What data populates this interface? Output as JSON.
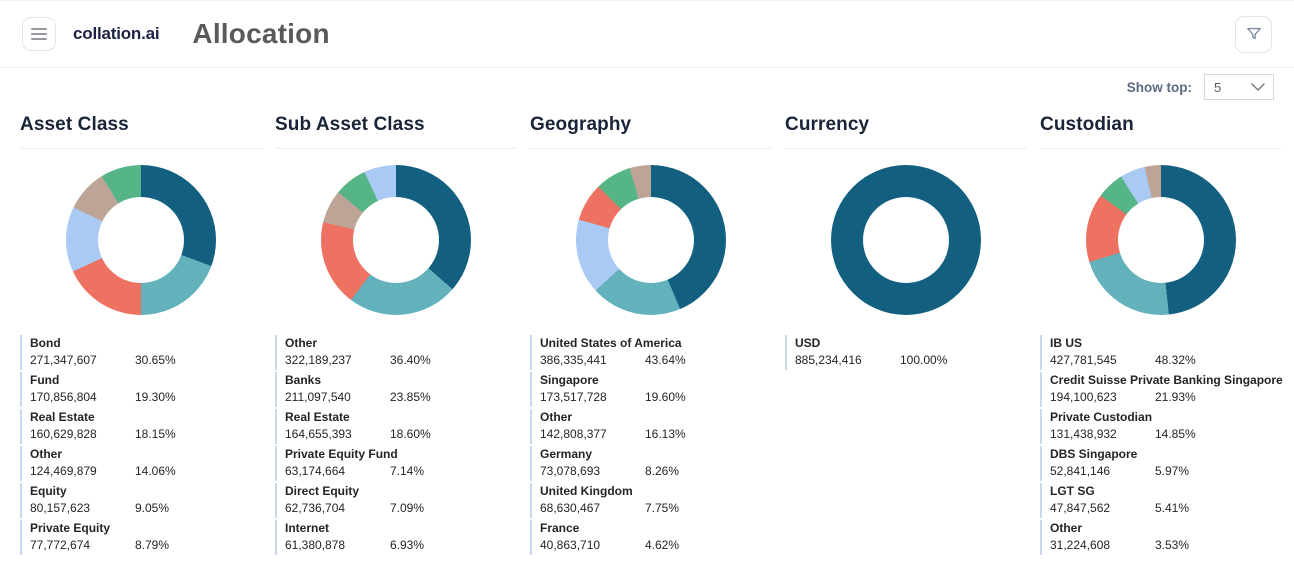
{
  "header": {
    "brand": "collation.ai",
    "title": "Allocation"
  },
  "toolbar": {
    "show_top_label": "Show top:",
    "show_top_value": "5"
  },
  "colors": {
    "dark_teal": "#135f80",
    "teal": "#62b1bb",
    "salmon": "#ed7261",
    "light_blue": "#a9caf5",
    "tan": "#bda496",
    "green": "#55b586",
    "brand_navy": "#1b2342",
    "page_title_gray": "#5a5a5a",
    "show_top_label_slate": "#5b6b84",
    "legend_bar_blue": "#c9d9ef"
  },
  "chart_data": [
    {
      "type": "pie",
      "variant": "donut",
      "title": "Asset Class",
      "legend_position": "bottom",
      "slices": [
        {
          "label": "Bond",
          "value": "271,347,607",
          "pct": "30.65%",
          "color": "#135f80"
        },
        {
          "label": "Fund",
          "value": "170,856,804",
          "pct": "19.30%",
          "color": "#62b1bb"
        },
        {
          "label": "Real Estate",
          "value": "160,629,828",
          "pct": "18.15%",
          "color": "#ed7261"
        },
        {
          "label": "Other",
          "value": "124,469,879",
          "pct": "14.06%",
          "color": "#a9caf5"
        },
        {
          "label": "Equity",
          "value": "80,157,623",
          "pct": "9.05%",
          "color": "#bda496"
        },
        {
          "label": "Private Equity",
          "value": "77,772,674",
          "pct": "8.79%",
          "color": "#55b586"
        }
      ]
    },
    {
      "type": "pie",
      "variant": "donut",
      "title": "Sub Asset Class",
      "legend_position": "bottom",
      "slices": [
        {
          "label": "Other",
          "value": "322,189,237",
          "pct": "36.40%",
          "color": "#135f80"
        },
        {
          "label": "Banks",
          "value": "211,097,540",
          "pct": "23.85%",
          "color": "#62b1bb"
        },
        {
          "label": "Real Estate",
          "value": "164,655,393",
          "pct": "18.60%",
          "color": "#ed7261"
        },
        {
          "label": "Private Equity Fund",
          "value": "63,174,664",
          "pct": "7.14%",
          "color": "#bda496"
        },
        {
          "label": "Direct Equity",
          "value": "62,736,704",
          "pct": "7.09%",
          "color": "#55b586"
        },
        {
          "label": "Internet",
          "value": "61,380,878",
          "pct": "6.93%",
          "color": "#a9caf5"
        }
      ]
    },
    {
      "type": "pie",
      "variant": "donut",
      "title": "Geography",
      "legend_position": "bottom",
      "slices": [
        {
          "label": "United States of America",
          "value": "386,335,441",
          "pct": "43.64%",
          "color": "#135f80"
        },
        {
          "label": "Singapore",
          "value": "173,517,728",
          "pct": "19.60%",
          "color": "#62b1bb"
        },
        {
          "label": "Other",
          "value": "142,808,377",
          "pct": "16.13%",
          "color": "#a9caf5"
        },
        {
          "label": "Germany",
          "value": "73,078,693",
          "pct": "8.26%",
          "color": "#ed7261"
        },
        {
          "label": "United Kingdom",
          "value": "68,630,467",
          "pct": "7.75%",
          "color": "#55b586"
        },
        {
          "label": "France",
          "value": "40,863,710",
          "pct": "4.62%",
          "color": "#bda496"
        }
      ]
    },
    {
      "type": "pie",
      "variant": "donut",
      "title": "Currency",
      "legend_position": "bottom",
      "slices": [
        {
          "label": "USD",
          "value": "885,234,416",
          "pct": "100.00%",
          "color": "#135f80"
        }
      ]
    },
    {
      "type": "pie",
      "variant": "donut",
      "title": "Custodian",
      "legend_position": "bottom",
      "slices": [
        {
          "label": "IB US",
          "value": "427,781,545",
          "pct": "48.32%",
          "color": "#135f80"
        },
        {
          "label": "Credit Suisse Private Banking Singapore",
          "value": "194,100,623",
          "pct": "21.93%",
          "color": "#62b1bb"
        },
        {
          "label": "Private Custodian",
          "value": "131,438,932",
          "pct": "14.85%",
          "color": "#ed7261"
        },
        {
          "label": "DBS Singapore",
          "value": "52,841,146",
          "pct": "5.97%",
          "color": "#55b586"
        },
        {
          "label": "LGT SG",
          "value": "47,847,562",
          "pct": "5.41%",
          "color": "#a9caf5"
        },
        {
          "label": "Other",
          "value": "31,224,608",
          "pct": "3.53%",
          "color": "#bda496"
        }
      ]
    }
  ]
}
